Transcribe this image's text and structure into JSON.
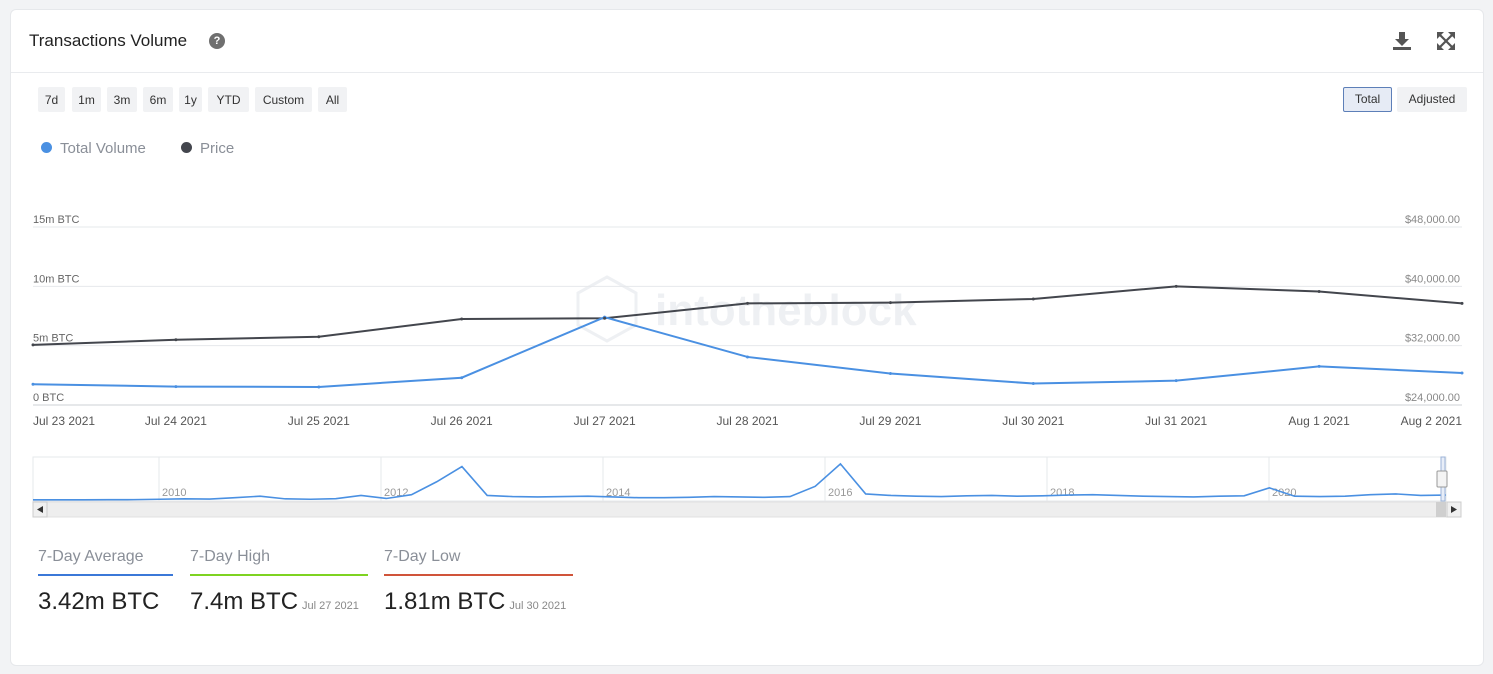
{
  "header": {
    "title": "Transactions Volume",
    "help_icon": "question-circle-icon",
    "download_icon": "download-icon",
    "fullscreen_icon": "expand-icon"
  },
  "range_buttons": [
    "7d",
    "1m",
    "3m",
    "6m",
    "1y",
    "YTD",
    "Custom",
    "All"
  ],
  "mode_buttons": {
    "active": "Total",
    "inactive": "Adjusted"
  },
  "legend": [
    {
      "label": "Total Volume",
      "color": "#4a90e2"
    },
    {
      "label": "Price",
      "color": "#43464d"
    }
  ],
  "watermark": "intotheblock",
  "chart_data": {
    "type": "line",
    "categories": [
      "Jul 23 2021",
      "Jul 24 2021",
      "Jul 25 2021",
      "Jul 26 2021",
      "Jul 27 2021",
      "Jul 28 2021",
      "Jul 29 2021",
      "Jul 30 2021",
      "Jul 31 2021",
      "Aug 1 2021",
      "Aug 2 2021"
    ],
    "series": [
      {
        "name": "Total Volume",
        "axis": "left",
        "color": "#4a90e2",
        "values": [
          1.75,
          1.55,
          1.52,
          2.3,
          7.4,
          4.05,
          2.65,
          1.81,
          2.05,
          3.25,
          2.7
        ]
      },
      {
        "name": "Price",
        "axis": "right",
        "color": "#43464d",
        "values": [
          32100,
          32800,
          33200,
          35600,
          35700,
          37700,
          37800,
          38300,
          40000,
          39300,
          37700
        ]
      }
    ],
    "left_axis": {
      "ticks": [
        "0 BTC",
        "5m BTC",
        "10m BTC",
        "15m BTC"
      ],
      "ylim": [
        0,
        15
      ]
    },
    "right_axis": {
      "ticks": [
        "$24,000.00",
        "$32,000.00",
        "$40,000.00",
        "$48,000.00"
      ],
      "ylim": [
        24000,
        48000
      ]
    },
    "grid": true,
    "navigator": {
      "years": [
        "2010",
        "2012",
        "2014",
        "2016",
        "2018",
        "2020"
      ],
      "series": [
        0.05,
        0.05,
        0.05,
        0.08,
        0.1,
        0.2,
        0.3,
        0.25,
        0.6,
        1.0,
        0.3,
        0.2,
        0.35,
        1.2,
        0.4,
        1.4,
        4.8,
        8.8,
        1.2,
        0.9,
        0.8,
        0.9,
        1.0,
        0.8,
        0.6,
        0.6,
        0.7,
        0.9,
        0.8,
        0.7,
        0.9,
        3.6,
        9.5,
        1.6,
        1.2,
        1.0,
        0.9,
        1.1,
        1.2,
        1.0,
        1.1,
        1.3,
        1.4,
        1.2,
        1.0,
        0.9,
        0.8,
        1.0,
        1.1,
        3.2,
        1.0,
        0.9,
        1.0,
        1.4,
        1.6,
        1.2,
        1.3
      ]
    }
  },
  "stats": [
    {
      "label": "7-Day Average",
      "value": "3.42m BTC",
      "date": "",
      "color": "#3b78d8"
    },
    {
      "label": "7-Day High",
      "value": "7.4m BTC",
      "date": "Jul 27 2021",
      "color": "#7ed321"
    },
    {
      "label": "7-Day Low",
      "value": "1.81m BTC",
      "date": "Jul 30 2021",
      "color": "#d0543a"
    }
  ]
}
